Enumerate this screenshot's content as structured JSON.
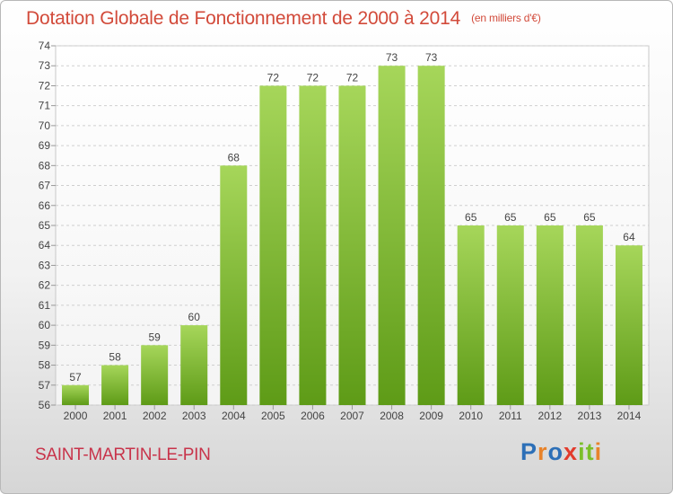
{
  "header": {
    "title": "Dotation Globale de Fonctionnement de 2000 à 2014",
    "unit": "(en milliers d'€)"
  },
  "footer": {
    "commune": "SAINT-MARTIN-LE-PIN",
    "brand_letters": [
      "P",
      "r",
      "o",
      "x",
      "i",
      "t",
      "i"
    ],
    "brand_colors": [
      "#2c6fb7",
      "#e8832a",
      "#2c6fb7",
      "#e23b2c",
      "#7bbf2a",
      "#7bbf2a",
      "#e8832a"
    ]
  },
  "colors": {
    "title": "#d24a3a",
    "bar_top": "#a6d65a",
    "bar_bottom": "#5e9b17",
    "grid": "#cfcfcf"
  },
  "chart_data": {
    "type": "bar",
    "title": "Dotation Globale de Fonctionnement de 2000 à 2014",
    "subtitle": "(en milliers d'€)",
    "categories": [
      "2000",
      "2001",
      "2002",
      "2003",
      "2004",
      "2005",
      "2006",
      "2007",
      "2008",
      "2009",
      "2010",
      "2011",
      "2012",
      "2013",
      "2014"
    ],
    "values": [
      57,
      58,
      59,
      60,
      68,
      72,
      72,
      72,
      73,
      73,
      65,
      65,
      65,
      65,
      64
    ],
    "ylim": [
      56,
      74
    ],
    "yticks": [
      56,
      57,
      58,
      59,
      60,
      61,
      62,
      63,
      64,
      65,
      66,
      67,
      68,
      69,
      70,
      71,
      72,
      73,
      74
    ],
    "grid": "horizontal-dashed",
    "legend": "none",
    "xlabel": "",
    "ylabel": ""
  }
}
